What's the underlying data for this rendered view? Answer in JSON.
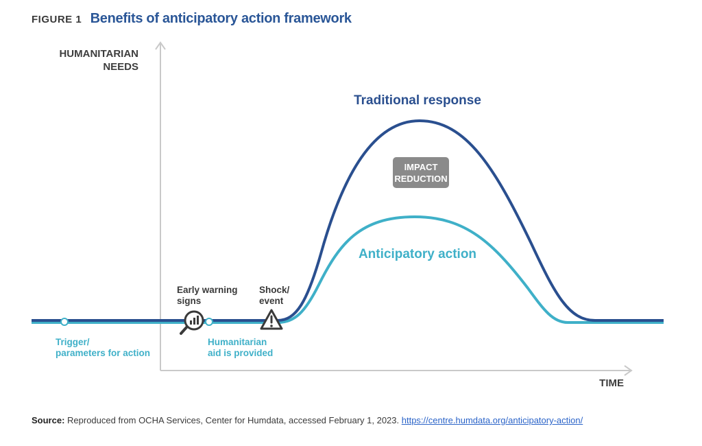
{
  "figure": {
    "label": "FIGURE 1",
    "title": "Benefits of anticipatory action framework"
  },
  "axes": {
    "y_label_line1": "HUMANITARIAN",
    "y_label_line2": "NEEDS",
    "x_label": "TIME"
  },
  "curves": {
    "traditional": {
      "label": "Traditional response",
      "color": "#2a4f8f"
    },
    "anticipatory": {
      "label": "Anticipatory action",
      "color": "#3fb0c8"
    }
  },
  "impact_badge": {
    "line1": "IMPACT",
    "line2": "REDUCTION",
    "color": "#8a8a8a"
  },
  "events": {
    "early_warning": {
      "line1": "Early warning",
      "line2": "signs",
      "icon": "magnifier-chart-icon"
    },
    "shock": {
      "line1": "Shock/",
      "line2": "event",
      "icon": "warning-triangle-icon"
    },
    "trigger": {
      "line1": "Trigger/",
      "line2": "parameters for action"
    },
    "aid": {
      "line1": "Humanitarian",
      "line2": "aid is provided"
    }
  },
  "source": {
    "prefix": "Source:",
    "text": " Reproduced from OCHA Services, Center for Humdata, accessed February 1, 2023. ",
    "link": "https://centre.humdata.org/anticipatory-action/"
  }
}
